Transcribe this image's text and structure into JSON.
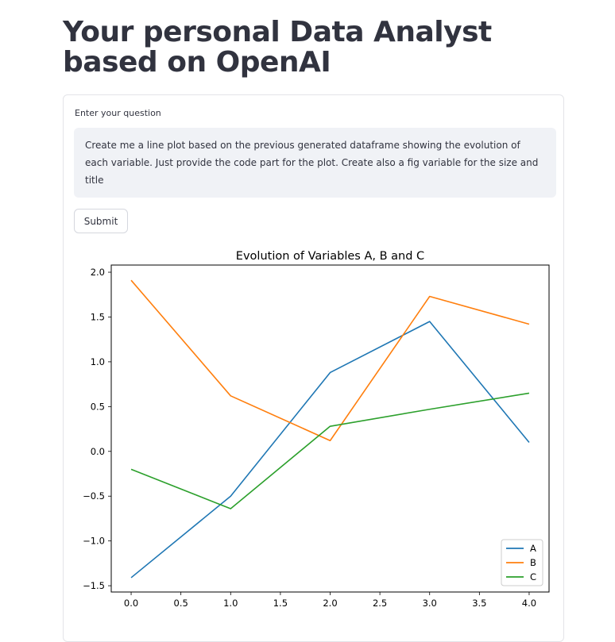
{
  "page": {
    "title": "Your personal Data Analyst based on OpenAI"
  },
  "form": {
    "question_label": "Enter your question",
    "question_value": "Create me a line plot based on the previous generated dataframe showing the evolution of each variable. Just provide the code part for the plot. Create also a fig variable for the size and title",
    "submit_label": "Submit"
  },
  "colors": {
    "A": "#1f77b4",
    "B": "#ff7f0e",
    "C": "#2ca02c"
  },
  "chart_data": {
    "type": "line",
    "title": "Evolution of Variables A, B and C",
    "xlabel": "",
    "ylabel": "",
    "x": [
      0,
      1,
      2,
      3,
      4
    ],
    "series": [
      {
        "name": "A",
        "values": [
          -1.41,
          -0.5,
          0.88,
          1.45,
          0.1
        ]
      },
      {
        "name": "B",
        "values": [
          1.91,
          0.62,
          0.12,
          1.73,
          1.42
        ]
      },
      {
        "name": "C",
        "values": [
          -0.2,
          -0.64,
          0.28,
          0.47,
          0.65
        ]
      }
    ],
    "xticks": [
      "0.0",
      "0.5",
      "1.0",
      "1.5",
      "2.0",
      "2.5",
      "3.0",
      "3.5",
      "4.0"
    ],
    "yticks": [
      "−1.5",
      "−1.0",
      "−0.5",
      "0.0",
      "0.5",
      "1.0",
      "1.5",
      "2.0"
    ],
    "xlim": [
      -0.2,
      4.2
    ],
    "ylim": [
      -1.57,
      2.08
    ],
    "grid": false,
    "legend": "lower-right"
  }
}
